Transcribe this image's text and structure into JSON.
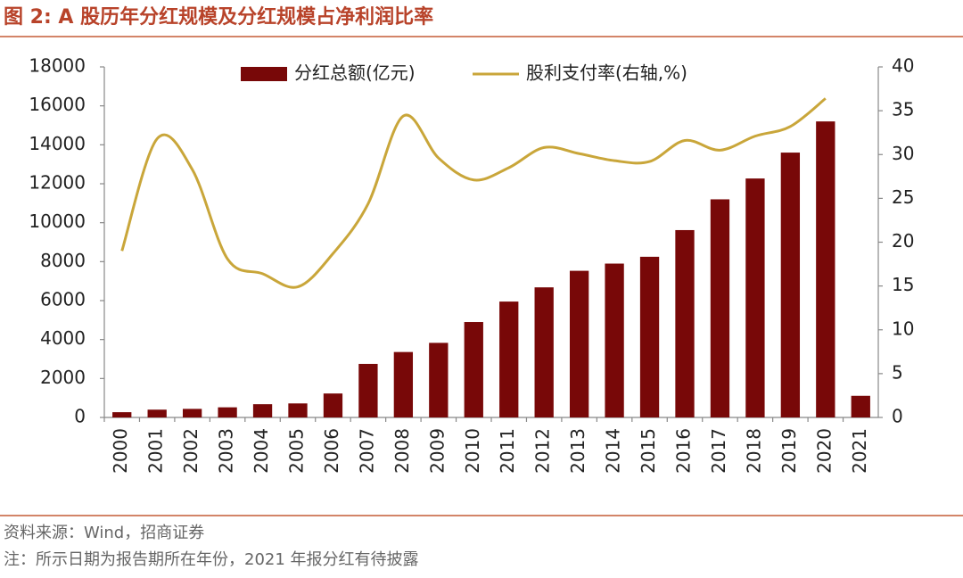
{
  "chart_data": {
    "type": "bar-line",
    "title": "图 2:  A 股历年分红规模及分红规模占净利润比率",
    "source": "资料来源：Wind，招商证券",
    "note": "注：所示日期为报告期所在年份，2021 年报分红有待披露",
    "categories": [
      "2000",
      "2001",
      "2002",
      "2003",
      "2004",
      "2005",
      "2006",
      "2007",
      "2008",
      "2009",
      "2010",
      "2011",
      "2012",
      "2013",
      "2014",
      "2015",
      "2016",
      "2017",
      "2018",
      "2019",
      "2020",
      "2021"
    ],
    "series": [
      {
        "name": "分红总额(亿元)",
        "type": "bar",
        "color": "#780808",
        "values": [
          270,
          400,
          440,
          520,
          680,
          720,
          1230,
          2750,
          3360,
          3830,
          4900,
          5950,
          6680,
          7530,
          7900,
          8250,
          9620,
          11200,
          12270,
          13600,
          15200,
          1110
        ]
      },
      {
        "name": "股利支付率(右轴,%)",
        "type": "line",
        "axis": "y2",
        "color": "#c9a63a",
        "values": [
          19.0,
          31.8,
          28.3,
          18.1,
          16.4,
          14.9,
          18.7,
          24.4,
          34.4,
          29.6,
          27.1,
          28.5,
          30.8,
          30.1,
          29.3,
          29.2,
          31.6,
          30.5,
          32.1,
          33.2,
          36.4,
          null
        ]
      }
    ],
    "ylim": [
      0,
      18000
    ],
    "yticks": [
      0,
      2000,
      4000,
      6000,
      8000,
      10000,
      12000,
      14000,
      16000,
      18000
    ],
    "y2lim": [
      0,
      40
    ],
    "y2ticks": [
      0,
      5,
      10,
      15,
      20,
      25,
      30,
      35,
      40
    ],
    "grid": false,
    "legend": "top"
  }
}
